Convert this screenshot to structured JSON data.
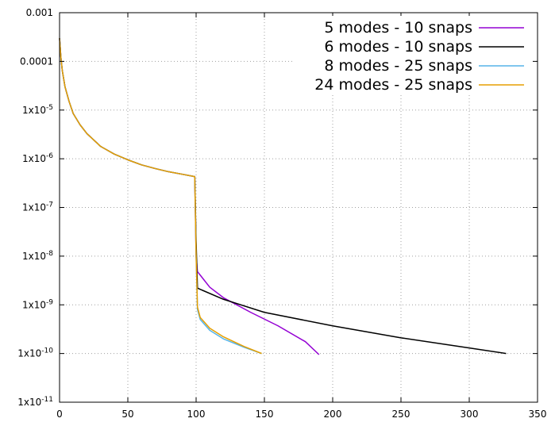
{
  "chart_data": {
    "type": "line",
    "title": "",
    "xlabel": "",
    "ylabel": "",
    "x_scale": "linear",
    "y_scale": "log",
    "xlim": [
      0,
      350
    ],
    "ylim": [
      1e-11,
      0.001
    ],
    "grid": true,
    "legend_position": "top-right",
    "x_ticks": [
      {
        "value": 0,
        "label": "0"
      },
      {
        "value": 50,
        "label": "50"
      },
      {
        "value": 100,
        "label": "100"
      },
      {
        "value": 150,
        "label": "150"
      },
      {
        "value": 200,
        "label": "200"
      },
      {
        "value": 250,
        "label": "250"
      },
      {
        "value": 300,
        "label": "300"
      },
      {
        "value": 350,
        "label": "350"
      }
    ],
    "y_ticks": [
      {
        "value": 1e-11,
        "mant": "1x10",
        "exp": "-11",
        "label": ""
      },
      {
        "value": 1e-10,
        "mant": "1x10",
        "exp": "-10",
        "label": ""
      },
      {
        "value": 1e-09,
        "mant": "1x10",
        "exp": "-9",
        "label": ""
      },
      {
        "value": 1e-08,
        "mant": "1x10",
        "exp": "-8",
        "label": ""
      },
      {
        "value": 1e-07,
        "mant": "1x10",
        "exp": "-7",
        "label": ""
      },
      {
        "value": 1e-06,
        "mant": "1x10",
        "exp": "-6",
        "label": ""
      },
      {
        "value": 1e-05,
        "mant": "1x10",
        "exp": "-5",
        "label": ""
      },
      {
        "value": 0.0001,
        "mant": "",
        "exp": "",
        "label": "0.0001"
      },
      {
        "value": 0.001,
        "mant": "",
        "exp": "",
        "label": "0.001"
      }
    ],
    "series": [
      {
        "name": "5 modes - 10 snaps",
        "color": "#9400d3",
        "points": [
          [
            0,
            0.0003
          ],
          [
            1,
            0.00012
          ],
          [
            2,
            6.5e-05
          ],
          [
            4,
            3e-05
          ],
          [
            7,
            1.5e-05
          ],
          [
            10,
            8.5e-06
          ],
          [
            15,
            5e-06
          ],
          [
            20,
            3.3e-06
          ],
          [
            30,
            1.8e-06
          ],
          [
            40,
            1.25e-06
          ],
          [
            50,
            9.5e-07
          ],
          [
            60,
            7.5e-07
          ],
          [
            70,
            6.3e-07
          ],
          [
            80,
            5.4e-07
          ],
          [
            90,
            4.8e-07
          ],
          [
            99,
            4.3e-07
          ],
          [
            100,
            1e-08
          ],
          [
            101,
            4.8e-09
          ],
          [
            110,
            2.3e-09
          ],
          [
            120,
            1.4e-09
          ],
          [
            140,
            7e-10
          ],
          [
            160,
            3.7e-10
          ],
          [
            180,
            1.75e-10
          ],
          [
            190,
            9.5e-11
          ]
        ]
      },
      {
        "name": "6 modes - 10 snaps",
        "color": "#000000",
        "points": [
          [
            0,
            0.0003
          ],
          [
            1,
            0.00012
          ],
          [
            2,
            6.5e-05
          ],
          [
            4,
            3e-05
          ],
          [
            7,
            1.5e-05
          ],
          [
            10,
            8.5e-06
          ],
          [
            15,
            5e-06
          ],
          [
            20,
            3.3e-06
          ],
          [
            30,
            1.8e-06
          ],
          [
            40,
            1.25e-06
          ],
          [
            50,
            9.5e-07
          ],
          [
            60,
            7.5e-07
          ],
          [
            70,
            6.3e-07
          ],
          [
            80,
            5.4e-07
          ],
          [
            90,
            4.8e-07
          ],
          [
            99,
            4.3e-07
          ],
          [
            100,
            2e-08
          ],
          [
            101,
            2.2e-09
          ],
          [
            120,
            1.3e-09
          ],
          [
            150,
            7e-10
          ],
          [
            200,
            3.7e-10
          ],
          [
            250,
            2.1e-10
          ],
          [
            300,
            1.3e-10
          ],
          [
            327,
            1e-10
          ]
        ]
      },
      {
        "name": "8 modes - 25 snaps",
        "color": "#56b4e9",
        "points": [
          [
            0,
            0.0003
          ],
          [
            1,
            0.00012
          ],
          [
            2,
            6.5e-05
          ],
          [
            4,
            3e-05
          ],
          [
            7,
            1.5e-05
          ],
          [
            10,
            8.5e-06
          ],
          [
            15,
            5e-06
          ],
          [
            20,
            3.3e-06
          ],
          [
            30,
            1.8e-06
          ],
          [
            40,
            1.25e-06
          ],
          [
            50,
            9.5e-07
          ],
          [
            60,
            7.5e-07
          ],
          [
            70,
            6.3e-07
          ],
          [
            80,
            5.4e-07
          ],
          [
            90,
            4.8e-07
          ],
          [
            99,
            4.3e-07
          ],
          [
            100,
            1e-08
          ],
          [
            101,
            8e-10
          ],
          [
            103,
            5e-10
          ],
          [
            110,
            3e-10
          ],
          [
            120,
            2e-10
          ],
          [
            135,
            1.35e-10
          ],
          [
            148,
            1e-10
          ]
        ]
      },
      {
        "name": "24 modes - 25 snaps",
        "color": "#e69f00",
        "points": [
          [
            0,
            0.0003
          ],
          [
            1,
            0.00012
          ],
          [
            2,
            6.5e-05
          ],
          [
            4,
            3e-05
          ],
          [
            7,
            1.5e-05
          ],
          [
            10,
            8.5e-06
          ],
          [
            15,
            5e-06
          ],
          [
            20,
            3.3e-06
          ],
          [
            30,
            1.8e-06
          ],
          [
            40,
            1.25e-06
          ],
          [
            50,
            9.5e-07
          ],
          [
            60,
            7.5e-07
          ],
          [
            70,
            6.3e-07
          ],
          [
            80,
            5.4e-07
          ],
          [
            90,
            4.8e-07
          ],
          [
            99,
            4.3e-07
          ],
          [
            100,
            1e-08
          ],
          [
            101,
            9e-10
          ],
          [
            103,
            5.5e-10
          ],
          [
            110,
            3.3e-10
          ],
          [
            120,
            2.2e-10
          ],
          [
            135,
            1.4e-10
          ],
          [
            148,
            1e-10
          ]
        ]
      }
    ]
  }
}
